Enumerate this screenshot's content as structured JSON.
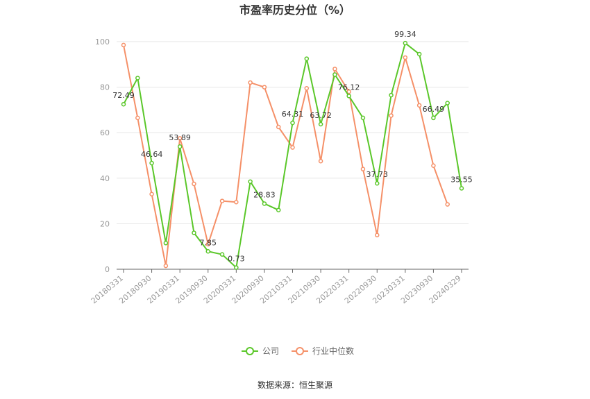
{
  "chart_data": {
    "type": "line",
    "title": "市盈率历史分位（%）",
    "source": "数据来源：恒生聚源",
    "ylim": [
      0,
      100
    ],
    "yticks": [
      0,
      20,
      40,
      60,
      80,
      100
    ],
    "xtick_labels": [
      "20180331",
      "20180930",
      "20190331",
      "20190930",
      "20200331",
      "20200930",
      "20210331",
      "20210930",
      "20220331",
      "20220930",
      "20230331",
      "20230930",
      "20240329"
    ],
    "x": [
      "20180331",
      "20180630",
      "20180930",
      "20181231",
      "20190331",
      "20190630",
      "20190930",
      "20191231",
      "20200331",
      "20200630",
      "20200930",
      "20201231",
      "20210331",
      "20210630",
      "20210930",
      "20211231",
      "20220331",
      "20220630",
      "20220930",
      "20221231",
      "20230331",
      "20230630",
      "20230930",
      "20231231",
      "20240329"
    ],
    "grid": true,
    "legend_position": "bottom",
    "series": [
      {
        "name": "公司",
        "color": "#5ac729",
        "values": [
          72.49,
          84,
          46.64,
          11.5,
          53.89,
          16,
          7.85,
          6.5,
          0.73,
          38.5,
          28.83,
          26,
          64.31,
          92.5,
          63.72,
          85.5,
          76.12,
          66.5,
          37.73,
          76.5,
          99.34,
          94.5,
          66.49,
          73,
          35.55
        ],
        "labels": {
          "0": "72.49",
          "2": "46.64",
          "4": "53.89",
          "6": "7.85",
          "8": "0.73",
          "10": "28.83",
          "12": "64.31",
          "14": "63.72",
          "16": "76.12",
          "18": "37.73",
          "20": "99.34",
          "22": "66.49",
          "24": "35.55"
        }
      },
      {
        "name": "行业中位数",
        "color": "#f59068",
        "values": [
          98.5,
          66.5,
          33,
          1.5,
          57.5,
          37.5,
          11,
          30,
          29.5,
          82,
          80,
          62.5,
          53.5,
          79.5,
          47.5,
          88,
          78,
          44,
          15,
          67.5,
          93,
          72,
          45.5,
          28.5,
          null
        ]
      }
    ]
  }
}
